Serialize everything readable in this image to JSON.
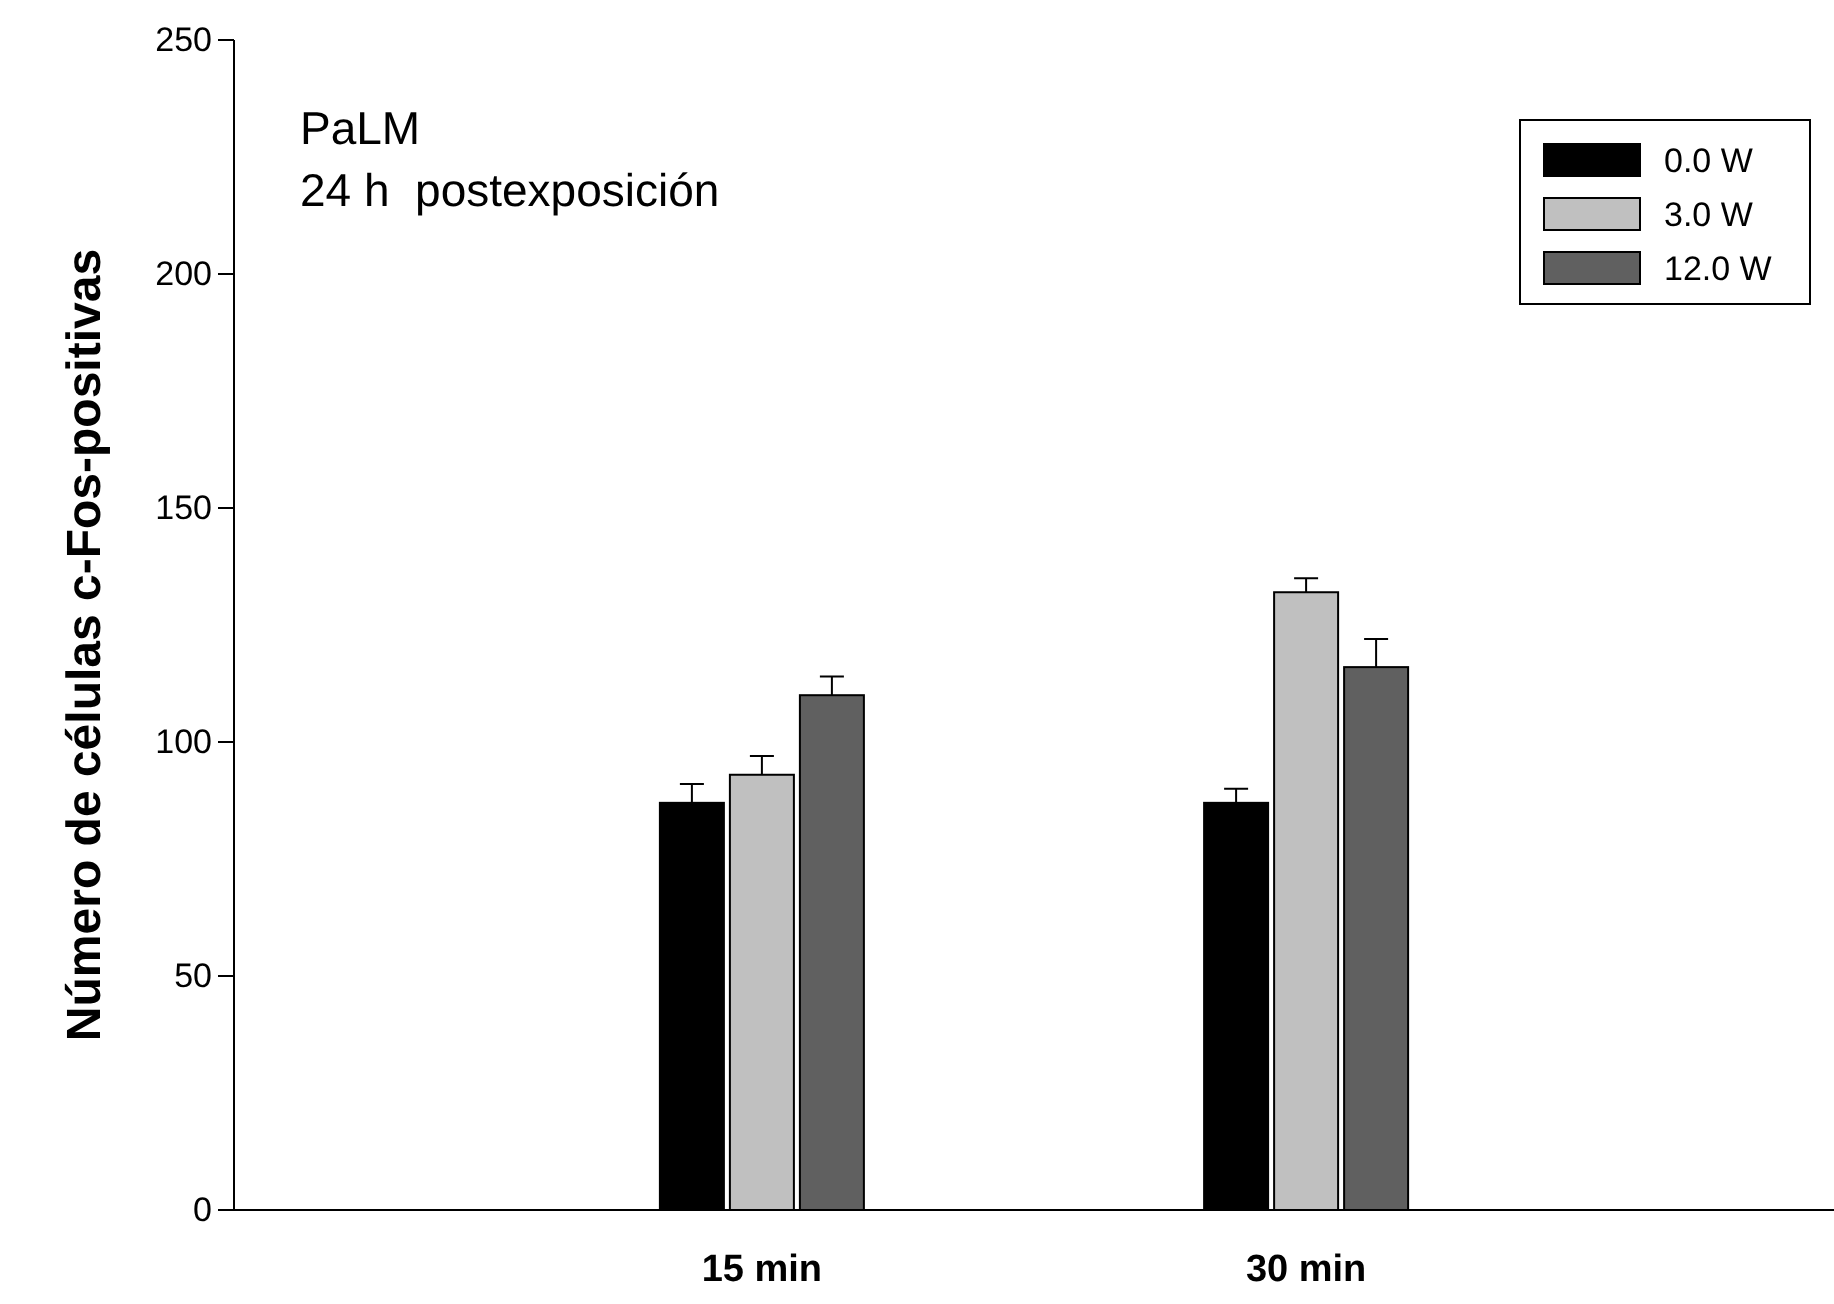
{
  "chart_data": {
    "type": "bar",
    "title": "PaLM",
    "subtitle": "24 h  postexposición",
    "ylabel": "Número de células c-Fos-positivas",
    "categories": [
      "15 min",
      "30 min"
    ],
    "series": [
      {
        "name": "0.0 W",
        "color": "#000000",
        "values": [
          87,
          87
        ],
        "errors": [
          4,
          3
        ]
      },
      {
        "name": "3.0 W",
        "color": "#c0c0c0",
        "values": [
          93,
          132
        ],
        "errors": [
          4,
          3
        ]
      },
      {
        "name": "12.0 W",
        "color": "#606060",
        "values": [
          110,
          116
        ],
        "errors": [
          4,
          6
        ]
      }
    ],
    "ylim": [
      0,
      250
    ],
    "yticks": [
      0,
      50,
      100,
      150,
      200,
      250
    ],
    "legend": "top right"
  }
}
